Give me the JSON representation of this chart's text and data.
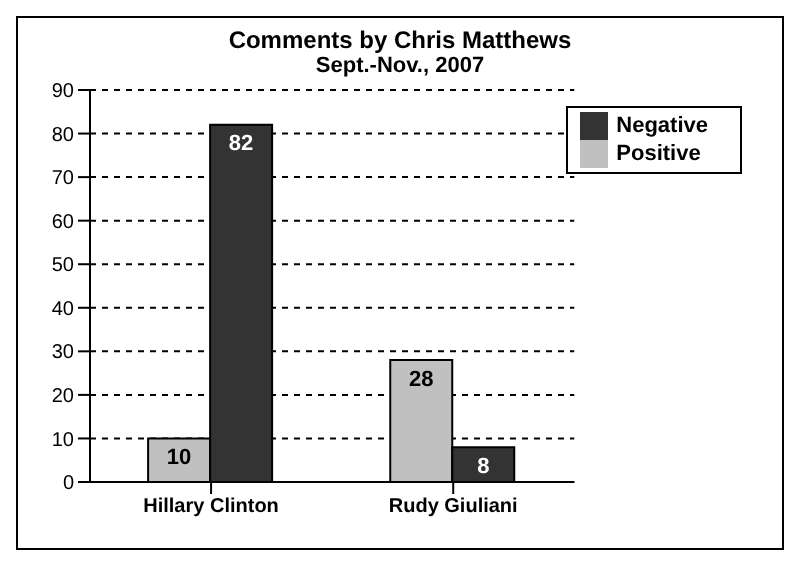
{
  "chart_data": {
    "type": "bar",
    "title": "Comments by Chris Matthews",
    "subtitle": "Sept.-Nov., 2007",
    "categories": [
      "Hillary Clinton",
      "Rudy Giuliani"
    ],
    "series": [
      {
        "name": "Positive",
        "color": "#c0c0c0",
        "values": [
          10,
          28
        ]
      },
      {
        "name": "Negative",
        "color": "#333333",
        "values": [
          82,
          8
        ]
      }
    ],
    "ylim": [
      0,
      90
    ],
    "yticks": [
      0,
      10,
      20,
      30,
      40,
      50,
      60,
      70,
      80,
      90
    ],
    "grid": "y",
    "legend": "top right",
    "data_labels": true
  }
}
